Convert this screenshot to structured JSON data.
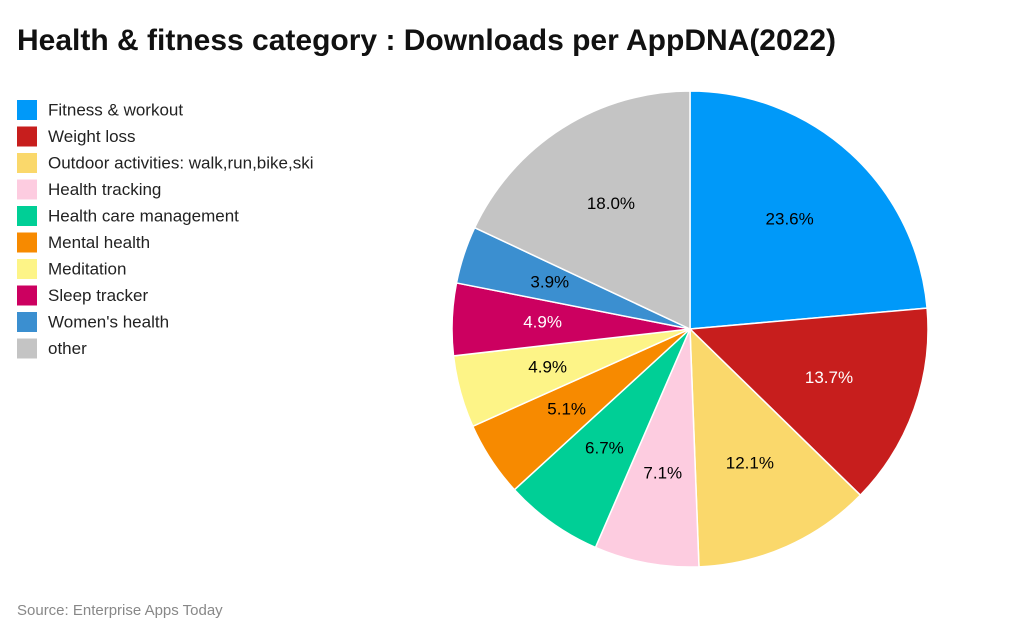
{
  "chart_data": {
    "type": "pie",
    "title": "Health & fitness category : Downloads per AppDNA(2022)",
    "source": "Source: Enterprise Apps Today",
    "categories": [
      "Fitness & workout",
      "Weight loss",
      "Outdoor activities: walk,run,bike,ski",
      "Health tracking",
      "Health care management",
      "Mental health",
      "Meditation",
      "Sleep tracker",
      "Women's health",
      "other"
    ],
    "values": [
      23.6,
      13.7,
      12.1,
      7.1,
      6.7,
      5.1,
      4.9,
      4.9,
      3.9,
      18.0
    ],
    "value_labels": [
      "23.6%",
      "13.7%",
      "12.1%",
      "7.1%",
      "6.7%",
      "5.1%",
      "4.9%",
      "4.9%",
      "3.9%",
      "18.0%"
    ],
    "colors": [
      "#0099f9",
      "#c71e1d",
      "#fad86b",
      "#fdcce0",
      "#00cf96",
      "#f78a00",
      "#fdf487",
      "#cc0060",
      "#3b8fd0",
      "#c4c4c4"
    ],
    "label_colors": [
      "#000000",
      "#ffffff",
      "#000000",
      "#000000",
      "#000000",
      "#000000",
      "#000000",
      "#ffffff",
      "#000000",
      "#000000"
    ],
    "legend": "top-left"
  }
}
